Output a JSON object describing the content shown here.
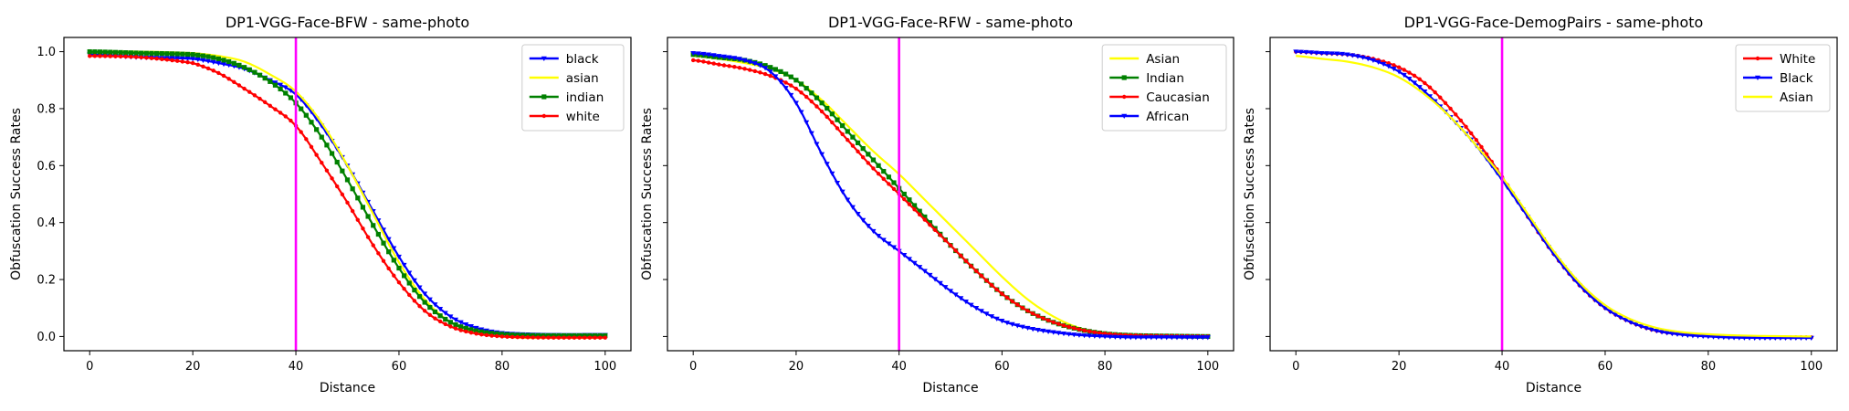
{
  "chart_data": [
    {
      "type": "line",
      "title": "DP1-VGG-Face-BFW - same-photo",
      "xlabel": "Distance",
      "ylabel": "Obfuscation Success Rates",
      "xlim": [
        -5,
        105
      ],
      "ylim": [
        -0.05,
        1.05
      ],
      "xticks": [
        "0",
        "20",
        "40",
        "60",
        "80",
        "100"
      ],
      "yticks": [
        "0.0",
        "0.2",
        "0.4",
        "0.6",
        "0.8",
        "1.0"
      ],
      "show_ytick_labels": true,
      "vline": {
        "x": 40,
        "color": "#ff00ff"
      },
      "legend_position": "upper right",
      "series": [
        {
          "name": "black",
          "color": "#0000ff",
          "marker": "triangle-down",
          "x": [
            0,
            10,
            20,
            25,
            30,
            35,
            40,
            45,
            50,
            55,
            60,
            65,
            70,
            75,
            80,
            85,
            90,
            100
          ],
          "values": [
            0.99,
            0.98,
            0.975,
            0.96,
            0.94,
            0.9,
            0.85,
            0.74,
            0.6,
            0.44,
            0.28,
            0.15,
            0.07,
            0.03,
            0.012,
            0.007,
            0.005,
            0.005
          ]
        },
        {
          "name": "asian",
          "color": "#ffff00",
          "marker": "none",
          "x": [
            0,
            10,
            20,
            25,
            30,
            35,
            40,
            45,
            50,
            55,
            60,
            65,
            70,
            75,
            80,
            85,
            90,
            100
          ],
          "values": [
            1.0,
            1.0,
            0.995,
            0.985,
            0.965,
            0.92,
            0.86,
            0.75,
            0.6,
            0.43,
            0.26,
            0.13,
            0.05,
            0.015,
            0.0,
            -0.005,
            -0.005,
            -0.005
          ]
        },
        {
          "name": "indian",
          "color": "#008000",
          "marker": "square",
          "x": [
            0,
            10,
            20,
            25,
            30,
            35,
            40,
            45,
            50,
            55,
            60,
            65,
            70,
            75,
            80,
            85,
            90,
            100
          ],
          "values": [
            1.0,
            0.995,
            0.99,
            0.975,
            0.945,
            0.895,
            0.82,
            0.7,
            0.55,
            0.39,
            0.24,
            0.12,
            0.05,
            0.02,
            0.008,
            0.004,
            0.003,
            0.003
          ]
        },
        {
          "name": "white",
          "color": "#ff0000",
          "marker": "circle",
          "x": [
            0,
            10,
            20,
            25,
            30,
            35,
            40,
            45,
            50,
            55,
            60,
            65,
            70,
            75,
            80,
            85,
            90,
            100
          ],
          "values": [
            0.985,
            0.98,
            0.96,
            0.925,
            0.87,
            0.81,
            0.74,
            0.61,
            0.47,
            0.32,
            0.19,
            0.09,
            0.035,
            0.01,
            0.0,
            -0.003,
            -0.004,
            -0.004
          ]
        }
      ]
    },
    {
      "type": "line",
      "title": "DP1-VGG-Face-RFW - same-photo",
      "xlabel": "Distance",
      "ylabel": "Obfuscation Success Rates",
      "xlim": [
        -5,
        105
      ],
      "ylim": [
        -0.05,
        1.05
      ],
      "xticks": [
        "0",
        "20",
        "40",
        "60",
        "80",
        "100"
      ],
      "yticks": [
        "0.0",
        "0.2",
        "0.4",
        "0.6",
        "0.8",
        "1.0"
      ],
      "show_ytick_labels": false,
      "vline": {
        "x": 40,
        "color": "#ff00ff"
      },
      "legend_position": "upper right",
      "series": [
        {
          "name": "Asian",
          "color": "#ffff00",
          "marker": "none",
          "x": [
            0,
            5,
            10,
            15,
            20,
            25,
            30,
            35,
            40,
            45,
            50,
            55,
            60,
            65,
            70,
            75,
            80,
            85,
            90,
            100
          ],
          "values": [
            0.985,
            0.975,
            0.96,
            0.94,
            0.9,
            0.83,
            0.74,
            0.65,
            0.57,
            0.48,
            0.39,
            0.3,
            0.21,
            0.13,
            0.07,
            0.03,
            0.012,
            0.005,
            0.002,
            0.0
          ]
        },
        {
          "name": "Indian",
          "color": "#008000",
          "marker": "square",
          "x": [
            0,
            5,
            10,
            15,
            20,
            25,
            30,
            35,
            40,
            45,
            50,
            55,
            60,
            65,
            70,
            75,
            80,
            85,
            90,
            100
          ],
          "values": [
            0.99,
            0.98,
            0.97,
            0.945,
            0.9,
            0.82,
            0.72,
            0.62,
            0.52,
            0.42,
            0.32,
            0.23,
            0.15,
            0.09,
            0.05,
            0.025,
            0.01,
            0.004,
            0.002,
            0.0
          ]
        },
        {
          "name": "Caucasian",
          "color": "#ff0000",
          "marker": "circle",
          "x": [
            0,
            5,
            10,
            15,
            20,
            25,
            30,
            35,
            40,
            45,
            50,
            55,
            60,
            65,
            70,
            75,
            80,
            85,
            90,
            100
          ],
          "values": [
            0.97,
            0.955,
            0.94,
            0.915,
            0.87,
            0.79,
            0.69,
            0.59,
            0.5,
            0.41,
            0.32,
            0.23,
            0.15,
            0.09,
            0.05,
            0.025,
            0.01,
            0.004,
            0.002,
            0.0
          ]
        },
        {
          "name": "African",
          "color": "#0000ff",
          "marker": "triangle-down",
          "x": [
            0,
            5,
            10,
            15,
            20,
            25,
            30,
            35,
            40,
            45,
            50,
            55,
            60,
            65,
            70,
            75,
            80,
            85,
            90,
            100
          ],
          "values": [
            0.995,
            0.985,
            0.97,
            0.93,
            0.82,
            0.64,
            0.48,
            0.37,
            0.3,
            0.23,
            0.16,
            0.1,
            0.055,
            0.03,
            0.015,
            0.005,
            0.0,
            -0.003,
            -0.003,
            -0.003
          ]
        }
      ]
    },
    {
      "type": "line",
      "title": "DP1-VGG-Face-DemogPairs - same-photo",
      "xlabel": "Distance",
      "ylabel": "Obfuscation Success Rates",
      "xlim": [
        -5,
        105
      ],
      "ylim": [
        -0.05,
        1.05
      ],
      "xticks": [
        "0",
        "20",
        "40",
        "60",
        "80",
        "100"
      ],
      "yticks": [
        "0.0",
        "0.2",
        "0.4",
        "0.6",
        "0.8",
        "1.0"
      ],
      "show_ytick_labels": false,
      "vline": {
        "x": 40,
        "color": "#ff00ff"
      },
      "legend_position": "upper right",
      "series": [
        {
          "name": "White",
          "color": "#ff0000",
          "marker": "circle",
          "x": [
            0,
            5,
            10,
            15,
            20,
            25,
            30,
            35,
            40,
            45,
            50,
            55,
            60,
            65,
            70,
            75,
            80,
            85,
            90,
            100
          ],
          "values": [
            1.0,
            0.995,
            0.99,
            0.975,
            0.945,
            0.89,
            0.8,
            0.69,
            0.56,
            0.42,
            0.29,
            0.18,
            0.1,
            0.05,
            0.02,
            0.008,
            0.003,
            0.0,
            -0.003,
            -0.003
          ]
        },
        {
          "name": "Black",
          "color": "#0000ff",
          "marker": "triangle-down",
          "x": [
            0,
            5,
            10,
            15,
            20,
            25,
            30,
            35,
            40,
            45,
            50,
            55,
            60,
            65,
            70,
            75,
            80,
            85,
            90,
            100
          ],
          "values": [
            1.0,
            0.995,
            0.99,
            0.97,
            0.93,
            0.86,
            0.77,
            0.67,
            0.55,
            0.42,
            0.29,
            0.18,
            0.1,
            0.05,
            0.02,
            0.006,
            0.0,
            -0.004,
            -0.005,
            -0.005
          ]
        },
        {
          "name": "Asian",
          "color": "#ffff00",
          "marker": "none",
          "x": [
            0,
            5,
            10,
            15,
            20,
            25,
            30,
            35,
            40,
            45,
            50,
            55,
            60,
            65,
            70,
            75,
            80,
            85,
            90,
            100
          ],
          "values": [
            0.985,
            0.975,
            0.965,
            0.945,
            0.91,
            0.85,
            0.77,
            0.67,
            0.56,
            0.43,
            0.3,
            0.19,
            0.11,
            0.06,
            0.03,
            0.015,
            0.008,
            0.004,
            0.002,
            0.0
          ]
        }
      ]
    }
  ]
}
